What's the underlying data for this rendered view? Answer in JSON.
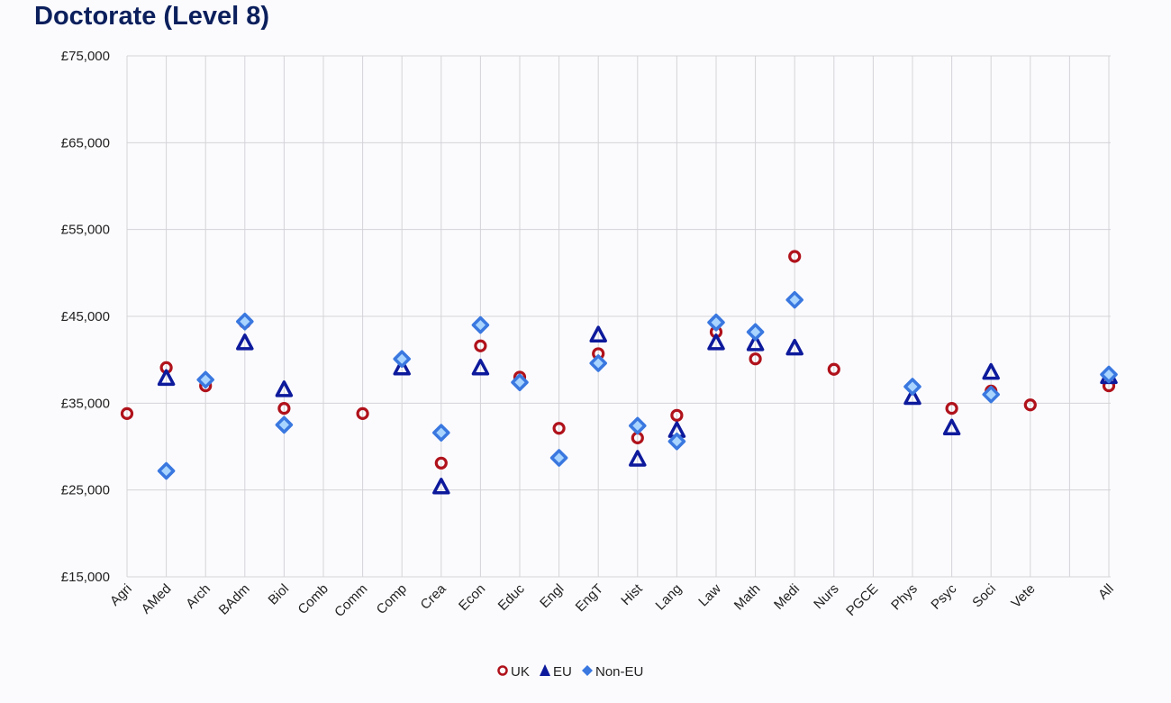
{
  "chart_data": {
    "type": "scatter",
    "title": "Doctorate (Level 8)",
    "xlabel": "",
    "ylabel": "",
    "ylim": [
      15000,
      75000
    ],
    "yticks": [
      15000,
      25000,
      35000,
      45000,
      55000,
      65000,
      75000
    ],
    "ytick_labels": [
      "£15,000",
      "£25,000",
      "£35,000",
      "£45,000",
      "£55,000",
      "£65,000",
      "£75,000"
    ],
    "grid": true,
    "legend_position": "bottom",
    "categories": [
      "Agri",
      "AMed",
      "Arch",
      "BAdm",
      "Biol",
      "Comb",
      "Comm",
      "Comp",
      "Crea",
      "Econ",
      "Educ",
      "Engl",
      "EngT",
      "Hist",
      "Lang",
      "Law",
      "Math",
      "Medi",
      "Nurs",
      "PGCE",
      "Phys",
      "Psyc",
      "Soci",
      "Vete",
      "",
      "All"
    ],
    "series": [
      {
        "name": "UK",
        "marker": "circle",
        "color": "#b0121b",
        "values": [
          33800,
          39100,
          37000,
          44300,
          34400,
          null,
          33800,
          null,
          28100,
          41600,
          38000,
          32100,
          40700,
          31000,
          33600,
          43200,
          40100,
          51900,
          38900,
          null,
          null,
          34400,
          36400,
          34800,
          null,
          37000
        ]
      },
      {
        "name": "EU",
        "marker": "triangle",
        "color": "#0d1a9c",
        "values": [
          null,
          37800,
          null,
          41900,
          36500,
          null,
          null,
          39000,
          25300,
          39000,
          null,
          null,
          42800,
          28500,
          31800,
          41900,
          41800,
          41300,
          null,
          null,
          35600,
          32100,
          38500,
          null,
          null,
          38000
        ]
      },
      {
        "name": "Non-EU",
        "marker": "diamond",
        "color": "#3a78e0",
        "values": [
          null,
          27200,
          37700,
          44400,
          32500,
          null,
          null,
          40100,
          31600,
          44000,
          37400,
          28700,
          39600,
          32400,
          30600,
          44300,
          43200,
          46900,
          null,
          null,
          36900,
          null,
          36000,
          null,
          null,
          38300
        ]
      }
    ]
  }
}
